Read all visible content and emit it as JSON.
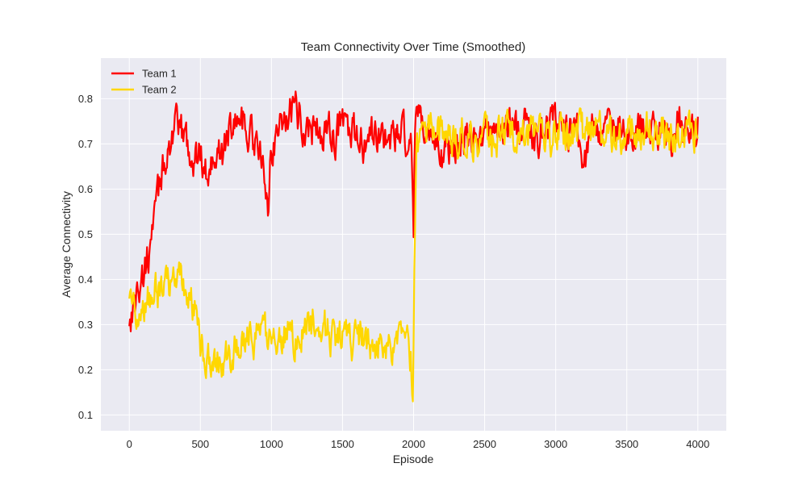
{
  "chart_data": {
    "type": "line",
    "title": "Team Connectivity Over Time (Smoothed)",
    "xlabel": "Episode",
    "ylabel": "Average Connectivity",
    "xlim": [
      -200,
      4200
    ],
    "ylim": [
      0.065,
      0.89
    ],
    "xticks": [
      0,
      500,
      1000,
      1500,
      2000,
      2500,
      3000,
      3500,
      4000
    ],
    "yticks": [
      0.1,
      0.2,
      0.3,
      0.4,
      0.5,
      0.6,
      0.7,
      0.8
    ],
    "grid": true,
    "legend_position": "top-left",
    "background": "#eaeaf2",
    "series": [
      {
        "name": "Team 1",
        "color": "#ff0000",
        "noise": 0.035,
        "x": [
          0,
          20,
          50,
          80,
          100,
          130,
          150,
          180,
          200,
          230,
          250,
          280,
          300,
          350,
          400,
          450,
          500,
          550,
          600,
          650,
          700,
          750,
          800,
          850,
          900,
          950,
          980,
          1000,
          1050,
          1100,
          1150,
          1200,
          1250,
          1300,
          1350,
          1400,
          1450,
          1500,
          1550,
          1600,
          1650,
          1700,
          1750,
          1800,
          1850,
          1900,
          1950,
          1980,
          2000,
          2010,
          2030,
          2050,
          2100,
          2150,
          2200,
          2250,
          2300,
          2350,
          2400,
          2450,
          2500,
          2550,
          2600,
          2650,
          2700,
          2750,
          2800,
          2850,
          2900,
          2950,
          3000,
          3050,
          3100,
          3150,
          3200,
          3250,
          3300,
          3350,
          3400,
          3450,
          3500,
          3550,
          3600,
          3650,
          3700,
          3750,
          3800,
          3850,
          3900,
          3950,
          4000
        ],
        "values": [
          0.31,
          0.33,
          0.36,
          0.39,
          0.41,
          0.44,
          0.48,
          0.53,
          0.58,
          0.63,
          0.67,
          0.7,
          0.72,
          0.73,
          0.71,
          0.66,
          0.68,
          0.63,
          0.7,
          0.66,
          0.73,
          0.76,
          0.75,
          0.73,
          0.69,
          0.63,
          0.57,
          0.69,
          0.74,
          0.76,
          0.77,
          0.77,
          0.73,
          0.74,
          0.72,
          0.73,
          0.71,
          0.75,
          0.73,
          0.71,
          0.69,
          0.71,
          0.71,
          0.72,
          0.71,
          0.72,
          0.71,
          0.68,
          0.5,
          0.74,
          0.75,
          0.73,
          0.72,
          0.71,
          0.68,
          0.7,
          0.71,
          0.71,
          0.7,
          0.7,
          0.72,
          0.73,
          0.74,
          0.74,
          0.74,
          0.72,
          0.75,
          0.72,
          0.72,
          0.73,
          0.75,
          0.72,
          0.73,
          0.74,
          0.66,
          0.73,
          0.73,
          0.72,
          0.74,
          0.73,
          0.74,
          0.73,
          0.74,
          0.73,
          0.72,
          0.72,
          0.69,
          0.76,
          0.73,
          0.73,
          0.74
        ]
      },
      {
        "name": "Team 2",
        "color": "#ffd700",
        "noise": 0.035,
        "x": [
          0,
          50,
          100,
          150,
          200,
          250,
          300,
          350,
          400,
          450,
          480,
          500,
          550,
          600,
          650,
          700,
          750,
          800,
          850,
          900,
          950,
          1000,
          1050,
          1100,
          1150,
          1200,
          1250,
          1300,
          1350,
          1400,
          1450,
          1500,
          1550,
          1600,
          1650,
          1700,
          1750,
          1800,
          1850,
          1900,
          1950,
          1980,
          1995,
          2005,
          2020,
          2050,
          2100,
          2150,
          2200,
          2250,
          2300,
          2350,
          2400,
          2450,
          2500,
          2550,
          2600,
          2650,
          2700,
          2750,
          2800,
          2850,
          2900,
          2950,
          3000,
          3050,
          3100,
          3150,
          3200,
          3250,
          3300,
          3350,
          3400,
          3450,
          3500,
          3550,
          3600,
          3650,
          3700,
          3750,
          3800,
          3850,
          3900,
          3950,
          4000
        ],
        "values": [
          0.33,
          0.34,
          0.35,
          0.36,
          0.37,
          0.39,
          0.4,
          0.4,
          0.38,
          0.34,
          0.3,
          0.26,
          0.23,
          0.22,
          0.23,
          0.22,
          0.24,
          0.26,
          0.28,
          0.27,
          0.27,
          0.27,
          0.28,
          0.29,
          0.27,
          0.27,
          0.29,
          0.31,
          0.3,
          0.28,
          0.27,
          0.27,
          0.26,
          0.27,
          0.27,
          0.26,
          0.25,
          0.26,
          0.26,
          0.27,
          0.25,
          0.22,
          0.13,
          0.45,
          0.7,
          0.72,
          0.72,
          0.72,
          0.71,
          0.71,
          0.71,
          0.72,
          0.71,
          0.71,
          0.72,
          0.71,
          0.73,
          0.72,
          0.72,
          0.73,
          0.72,
          0.73,
          0.72,
          0.72,
          0.72,
          0.72,
          0.73,
          0.72,
          0.72,
          0.72,
          0.73,
          0.72,
          0.72,
          0.72,
          0.72,
          0.73,
          0.72,
          0.73,
          0.72,
          0.73,
          0.72,
          0.71,
          0.73,
          0.72,
          0.73
        ]
      }
    ]
  }
}
